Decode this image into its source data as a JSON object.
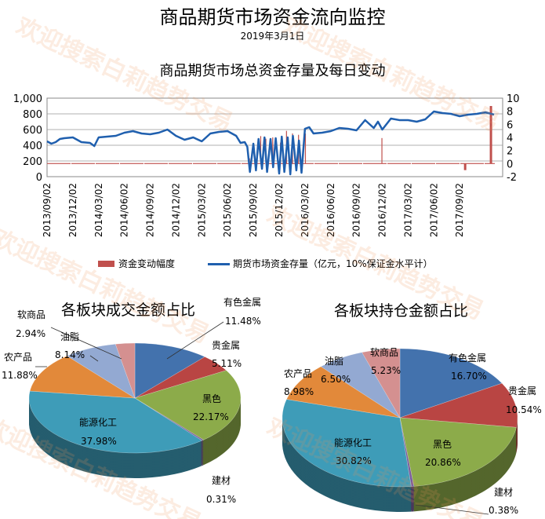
{
  "header": {
    "title": "商品期货市场资金流向监控",
    "date": "2019年3月1日"
  },
  "watermark": "欢迎搜索白莉趋势交易",
  "chart_data": [
    {
      "type": "line",
      "title": "商品期货市场总资金存量及每日变动",
      "x_ticks": [
        "2013/09/02",
        "2013/12/02",
        "2014/03/02",
        "2014/06/02",
        "2014/09/02",
        "2014/12/02",
        "2015/03/02",
        "2015/06/02",
        "2015/09/02",
        "2015/12/02",
        "2016/03/02",
        "2016/06/02",
        "2016/09/02",
        "2016/12/02",
        "2017/03/02",
        "2017/06/02",
        "2017/09/02"
      ],
      "y_left": {
        "ticks": [
          "0",
          "200",
          "400",
          "600",
          "800",
          "1,000"
        ],
        "range": [
          0,
          1000
        ]
      },
      "y_right": {
        "ticks": [
          "-2",
          "0",
          "2",
          "4",
          "6",
          "8",
          "10"
        ],
        "range": [
          -2,
          10
        ]
      },
      "legend": [
        "资金变动幅度",
        "期货市场资金存量（亿元，10%保证金水平计）"
      ],
      "legend_position": "bottom",
      "series": [
        {
          "name": "期货市场资金存量（亿元，10%保证金水平计）",
          "axis": "left",
          "color": "#1f5fae",
          "x_months": [
            0,
            0.5,
            1,
            1.5,
            2,
            3,
            4,
            5,
            5.5,
            6,
            7,
            8,
            9,
            10,
            11,
            12,
            13,
            14,
            15,
            16,
            17,
            18,
            19,
            20,
            21,
            22,
            22.5,
            23,
            23.3,
            23.6,
            24,
            24.3,
            24.6,
            25,
            25.3,
            25.6,
            26,
            26.3,
            26.6,
            27,
            27.3,
            27.6,
            28,
            28.3,
            28.6,
            29,
            29.3,
            29.6,
            30,
            30.5,
            31,
            32,
            33,
            34,
            35,
            36,
            37,
            38,
            38.5,
            39,
            40,
            41,
            42,
            43,
            44,
            45,
            46,
            47,
            48,
            49,
            50,
            51,
            52
          ],
          "values": [
            450,
            420,
            440,
            480,
            490,
            500,
            440,
            430,
            390,
            500,
            510,
            520,
            560,
            580,
            550,
            540,
            560,
            600,
            520,
            470,
            500,
            450,
            550,
            570,
            580,
            520,
            430,
            440,
            380,
            60,
            420,
            80,
            480,
            100,
            500,
            60,
            480,
            120,
            490,
            40,
            510,
            60,
            500,
            30,
            520,
            80,
            460,
            50,
            610,
            630,
            550,
            560,
            580,
            620,
            610,
            590,
            720,
            620,
            700,
            600,
            740,
            720,
            720,
            700,
            730,
            830,
            810,
            800,
            770,
            790,
            800,
            820,
            790
          ]
        },
        {
          "name": "资金变动幅度",
          "axis": "right",
          "color": "#c0504d",
          "x_months": [
            23.5,
            24.8,
            25.4,
            26.2,
            27.1,
            27.8,
            28.5,
            29.2,
            30.0,
            38.9,
            48.5,
            51.5
          ],
          "values": [
            0.8,
            4.2,
            3.8,
            4.0,
            3.2,
            5.0,
            4.6,
            4.4,
            4.6,
            3.9,
            -1.0,
            8.8
          ]
        }
      ]
    },
    {
      "type": "pie",
      "title": "各板块成交金额占比",
      "slices": [
        {
          "label": "有色金属",
          "value": 11.48,
          "text": "11.48%",
          "color": "#4372ad"
        },
        {
          "label": "贵金属",
          "value": 5.11,
          "text": "5.11%",
          "color": "#b94543"
        },
        {
          "label": "黑色",
          "value": 22.17,
          "text": "22.17%",
          "color": "#8cab4a"
        },
        {
          "label": "建材",
          "value": 0.31,
          "text": "0.31%",
          "color": "#7a5e9c"
        },
        {
          "label": "能源化工",
          "value": 37.98,
          "text": "37.98%",
          "color": "#3e9cb8"
        },
        {
          "label": "农产品",
          "value": 11.88,
          "text": "11.88%",
          "color": "#e2893a"
        },
        {
          "label": "油脂",
          "value": 8.14,
          "text": "8.14%",
          "color": "#93a9d2"
        },
        {
          "label": "软商品",
          "value": 2.94,
          "text": "2.94%",
          "color": "#d49090"
        }
      ]
    },
    {
      "type": "pie",
      "title": "各板块持仓金额占比",
      "slices": [
        {
          "label": "有色金属",
          "value": 16.7,
          "text": "16.70%",
          "color": "#4372ad"
        },
        {
          "label": "贵金属",
          "value": 10.54,
          "text": "10.54%",
          "color": "#b94543"
        },
        {
          "label": "黑色",
          "value": 20.86,
          "text": "20.86%",
          "color": "#8cab4a"
        },
        {
          "label": "建材",
          "value": 0.38,
          "text": "0.38%",
          "color": "#7a5e9c"
        },
        {
          "label": "能源化工",
          "value": 30.82,
          "text": "30.82%",
          "color": "#3e9cb8"
        },
        {
          "label": "农产品",
          "value": 8.98,
          "text": "8.98%",
          "color": "#e2893a"
        },
        {
          "label": "油脂",
          "value": 6.5,
          "text": "6.50%",
          "color": "#93a9d2"
        },
        {
          "label": "软商品",
          "value": 5.23,
          "text": "5.23%",
          "color": "#d49090"
        }
      ]
    }
  ]
}
